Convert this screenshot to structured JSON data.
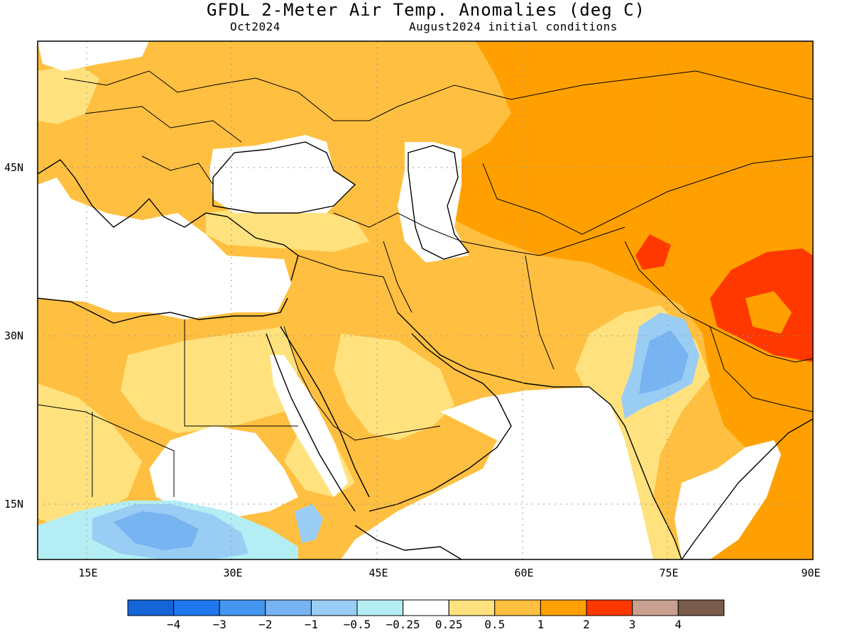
{
  "title": "GFDL 2-Meter Air Temp. Anomalies (deg C)",
  "subtitle_left": "Oct2024",
  "subtitle_right": "August2024 initial conditions",
  "axes": {
    "x_ticks": [
      "15E",
      "30E",
      "45E",
      "60E",
      "75E",
      "90E"
    ],
    "y_ticks": [
      "45N",
      "30N",
      "15N"
    ],
    "lon_range": [
      10,
      90
    ],
    "lat_range": [
      10,
      55
    ]
  },
  "colorbar": {
    "colors": [
      "#1565d8",
      "#1f78ee",
      "#4596f0",
      "#78b4f2",
      "#9acdf4",
      "#b4eef4",
      "#ffffff",
      "#ffe27e",
      "#ffbf40",
      "#ffa000",
      "#ff3800",
      "#c8a090",
      "#7a5a4a"
    ],
    "labels": [
      "-4",
      "-3",
      "-2",
      "-1",
      "-0.5",
      "-0.25",
      "0.25",
      "0.5",
      "1",
      "2",
      "3",
      "4"
    ]
  },
  "legend_colors": {
    "orange": "#ffa000",
    "light_orange": "#ffbf40",
    "yellow": "#ffe27e",
    "red": "#ff3800",
    "light_blue": "#9acdf4",
    "mid_blue": "#78b4f2",
    "cyan": "#b4eef4"
  }
}
